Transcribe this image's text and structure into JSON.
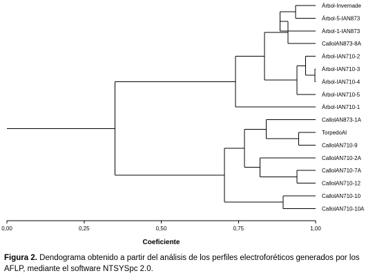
{
  "diagram": {
    "type": "dendrogram",
    "axis": {
      "title": "Coeficiente",
      "range": [
        0.0,
        1.0
      ],
      "ticks": [
        {
          "value": 0.0,
          "label": "0,00"
        },
        {
          "value": 0.25,
          "label": "0,25"
        },
        {
          "value": 0.5,
          "label": "0,50"
        },
        {
          "value": 0.75,
          "label": "0,75"
        },
        {
          "value": 1.0,
          "label": "1,00"
        }
      ]
    },
    "leaves": [
      "Árbol-Invernade",
      "Árbol-5-IAN873",
      "Árbol-1-IAN873",
      "CallolAN873-8A",
      "Árbol-IAN710-2",
      "Árbol-IAN710-3",
      "Árbol-IAN710-4",
      "Árbol-IAN710-5",
      "Árbol-IAN710-1",
      "CallolAN873-1A",
      "TorpedoAl",
      "CallolAN710-9",
      "CallolAN710-2A",
      "CallolAN710-7A",
      "CallolAN710-12",
      "CallolAN710-10",
      "CallolAN710-10A"
    ],
    "merges": [
      {
        "id": "n1",
        "a": 0,
        "b": 1,
        "sim": 0.935
      },
      {
        "id": "n2",
        "a": "n1",
        "b": 2,
        "sim": 0.885
      },
      {
        "id": "n3",
        "a": "n2",
        "b": 3,
        "sim": 0.91
      },
      {
        "id": "n4",
        "a": 5,
        "b": 6,
        "sim": 0.998
      },
      {
        "id": "n5",
        "a": 4,
        "b": "n4",
        "sim": 0.968
      },
      {
        "id": "n6",
        "a": "n5",
        "b": 7,
        "sim": 0.94
      },
      {
        "id": "n7",
        "a": "n3",
        "b": "n6",
        "sim": 0.835
      },
      {
        "id": "n8",
        "a": "n7",
        "b": 8,
        "sim": 0.74
      },
      {
        "id": "n9",
        "a": 10,
        "b": 11,
        "sim": 0.945
      },
      {
        "id": "n10",
        "a": 9,
        "b": "n9",
        "sim": 0.84
      },
      {
        "id": "n11",
        "a": 13,
        "b": 14,
        "sim": 0.94
      },
      {
        "id": "n12",
        "a": 12,
        "b": "n11",
        "sim": 0.82
      },
      {
        "id": "n13",
        "a": "n10",
        "b": "n12",
        "sim": 0.77
      },
      {
        "id": "n14",
        "a": 15,
        "b": 16,
        "sim": 0.895
      },
      {
        "id": "n15",
        "a": "n13",
        "b": "n14",
        "sim": 0.705
      },
      {
        "id": "n16",
        "a": "n8",
        "b": "n15",
        "sim": 0.35
      }
    ]
  },
  "caption": {
    "label": "Figura 2.",
    "text": "Dendograma obtenido a partir del análisis de los perfiles electroforéticos generados por los AFLP, mediante el software NTSYSpc 2.0."
  }
}
